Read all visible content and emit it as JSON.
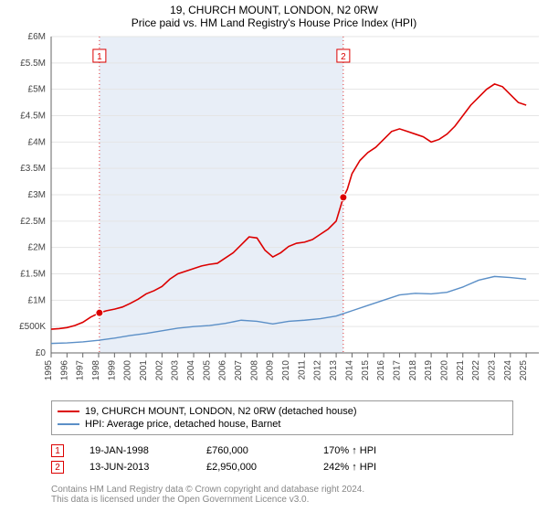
{
  "title": "19, CHURCH MOUNT, LONDON, N2 0RW",
  "subtitle": "Price paid vs. HM Land Registry's House Price Index (HPI)",
  "chart": {
    "type": "line",
    "background_color": "#ffffff",
    "plot_band_color": "#e8eef7",
    "grid_color": "#e5e5e5",
    "axis_color": "#666666",
    "axis_fontsize": 10,
    "x": {
      "min": 1995,
      "max": 2025.8,
      "ticks": [
        1995,
        1996,
        1997,
        1998,
        1999,
        2000,
        2001,
        2002,
        2003,
        2004,
        2005,
        2006,
        2007,
        2008,
        2009,
        2010,
        2011,
        2012,
        2013,
        2014,
        2015,
        2016,
        2017,
        2018,
        2019,
        2020,
        2021,
        2022,
        2023,
        2024,
        2025
      ]
    },
    "y": {
      "min": 0,
      "max": 6000000,
      "ticks": [
        0,
        500000,
        1000000,
        1500000,
        2000000,
        2500000,
        3000000,
        3500000,
        4000000,
        4500000,
        5000000,
        5500000,
        6000000
      ],
      "labels": [
        "£0",
        "£500K",
        "£1M",
        "£1.5M",
        "£2M",
        "£2.5M",
        "£3M",
        "£3.5M",
        "£4M",
        "£4.5M",
        "£5M",
        "£5.5M",
        "£6M"
      ]
    },
    "plot_band": {
      "from": 1998.05,
      "to": 2013.45
    },
    "series": [
      {
        "label": "19, CHURCH MOUNT, LONDON, N2 0RW (detached house)",
        "color": "#dc0000",
        "width": 1.6,
        "data": [
          [
            1995,
            450000
          ],
          [
            1995.5,
            460000
          ],
          [
            1996,
            480000
          ],
          [
            1996.5,
            520000
          ],
          [
            1997,
            580000
          ],
          [
            1997.5,
            680000
          ],
          [
            1998.05,
            760000
          ],
          [
            1998.5,
            800000
          ],
          [
            1999,
            830000
          ],
          [
            1999.5,
            870000
          ],
          [
            2000,
            940000
          ],
          [
            2000.5,
            1020000
          ],
          [
            2001,
            1120000
          ],
          [
            2001.5,
            1180000
          ],
          [
            2002,
            1260000
          ],
          [
            2002.5,
            1400000
          ],
          [
            2003,
            1500000
          ],
          [
            2003.5,
            1550000
          ],
          [
            2004,
            1600000
          ],
          [
            2004.5,
            1650000
          ],
          [
            2005,
            1680000
          ],
          [
            2005.5,
            1700000
          ],
          [
            2006,
            1800000
          ],
          [
            2006.5,
            1900000
          ],
          [
            2007,
            2050000
          ],
          [
            2007.5,
            2200000
          ],
          [
            2008,
            2180000
          ],
          [
            2008.5,
            1950000
          ],
          [
            2009,
            1820000
          ],
          [
            2009.5,
            1900000
          ],
          [
            2010,
            2020000
          ],
          [
            2010.5,
            2080000
          ],
          [
            2011,
            2100000
          ],
          [
            2011.5,
            2150000
          ],
          [
            2012,
            2250000
          ],
          [
            2012.5,
            2350000
          ],
          [
            2013,
            2500000
          ],
          [
            2013.45,
            2950000
          ],
          [
            2013.7,
            3100000
          ],
          [
            2014,
            3400000
          ],
          [
            2014.5,
            3650000
          ],
          [
            2015,
            3800000
          ],
          [
            2015.5,
            3900000
          ],
          [
            2016,
            4050000
          ],
          [
            2016.5,
            4200000
          ],
          [
            2017,
            4250000
          ],
          [
            2017.5,
            4200000
          ],
          [
            2018,
            4150000
          ],
          [
            2018.5,
            4100000
          ],
          [
            2019,
            4000000
          ],
          [
            2019.5,
            4050000
          ],
          [
            2020,
            4150000
          ],
          [
            2020.5,
            4300000
          ],
          [
            2021,
            4500000
          ],
          [
            2021.5,
            4700000
          ],
          [
            2022,
            4850000
          ],
          [
            2022.5,
            5000000
          ],
          [
            2023,
            5100000
          ],
          [
            2023.5,
            5050000
          ],
          [
            2024,
            4900000
          ],
          [
            2024.5,
            4750000
          ],
          [
            2025,
            4700000
          ]
        ]
      },
      {
        "label": "HPI: Average price, detached house, Barnet",
        "color": "#5b8fc7",
        "width": 1.4,
        "data": [
          [
            1995,
            180000
          ],
          [
            1996,
            190000
          ],
          [
            1997,
            210000
          ],
          [
            1998,
            240000
          ],
          [
            1999,
            280000
          ],
          [
            2000,
            330000
          ],
          [
            2001,
            370000
          ],
          [
            2002,
            420000
          ],
          [
            2003,
            470000
          ],
          [
            2004,
            500000
          ],
          [
            2005,
            520000
          ],
          [
            2006,
            560000
          ],
          [
            2007,
            620000
          ],
          [
            2008,
            600000
          ],
          [
            2009,
            550000
          ],
          [
            2010,
            600000
          ],
          [
            2011,
            620000
          ],
          [
            2012,
            650000
          ],
          [
            2013,
            700000
          ],
          [
            2014,
            800000
          ],
          [
            2015,
            900000
          ],
          [
            2016,
            1000000
          ],
          [
            2017,
            1100000
          ],
          [
            2018,
            1130000
          ],
          [
            2019,
            1120000
          ],
          [
            2020,
            1150000
          ],
          [
            2021,
            1250000
          ],
          [
            2022,
            1380000
          ],
          [
            2023,
            1450000
          ],
          [
            2024,
            1430000
          ],
          [
            2025,
            1400000
          ]
        ]
      }
    ],
    "markers": [
      {
        "n": "1",
        "x": 1998.05,
        "y": 760000,
        "box_color": "#dc0000"
      },
      {
        "n": "2",
        "x": 2013.45,
        "y": 2950000,
        "box_color": "#dc0000"
      }
    ],
    "point_color": "#dc0000",
    "point_radius": 4
  },
  "marker_table": [
    {
      "n": "1",
      "date": "19-JAN-1998",
      "price": "£760,000",
      "pct": "170% ↑ HPI"
    },
    {
      "n": "2",
      "date": "13-JUN-2013",
      "price": "£2,950,000",
      "pct": "242% ↑ HPI"
    }
  ],
  "footer": {
    "line1": "Contains HM Land Registry data © Crown copyright and database right 2024.",
    "line2": "This data is licensed under the Open Government Licence v3.0."
  }
}
